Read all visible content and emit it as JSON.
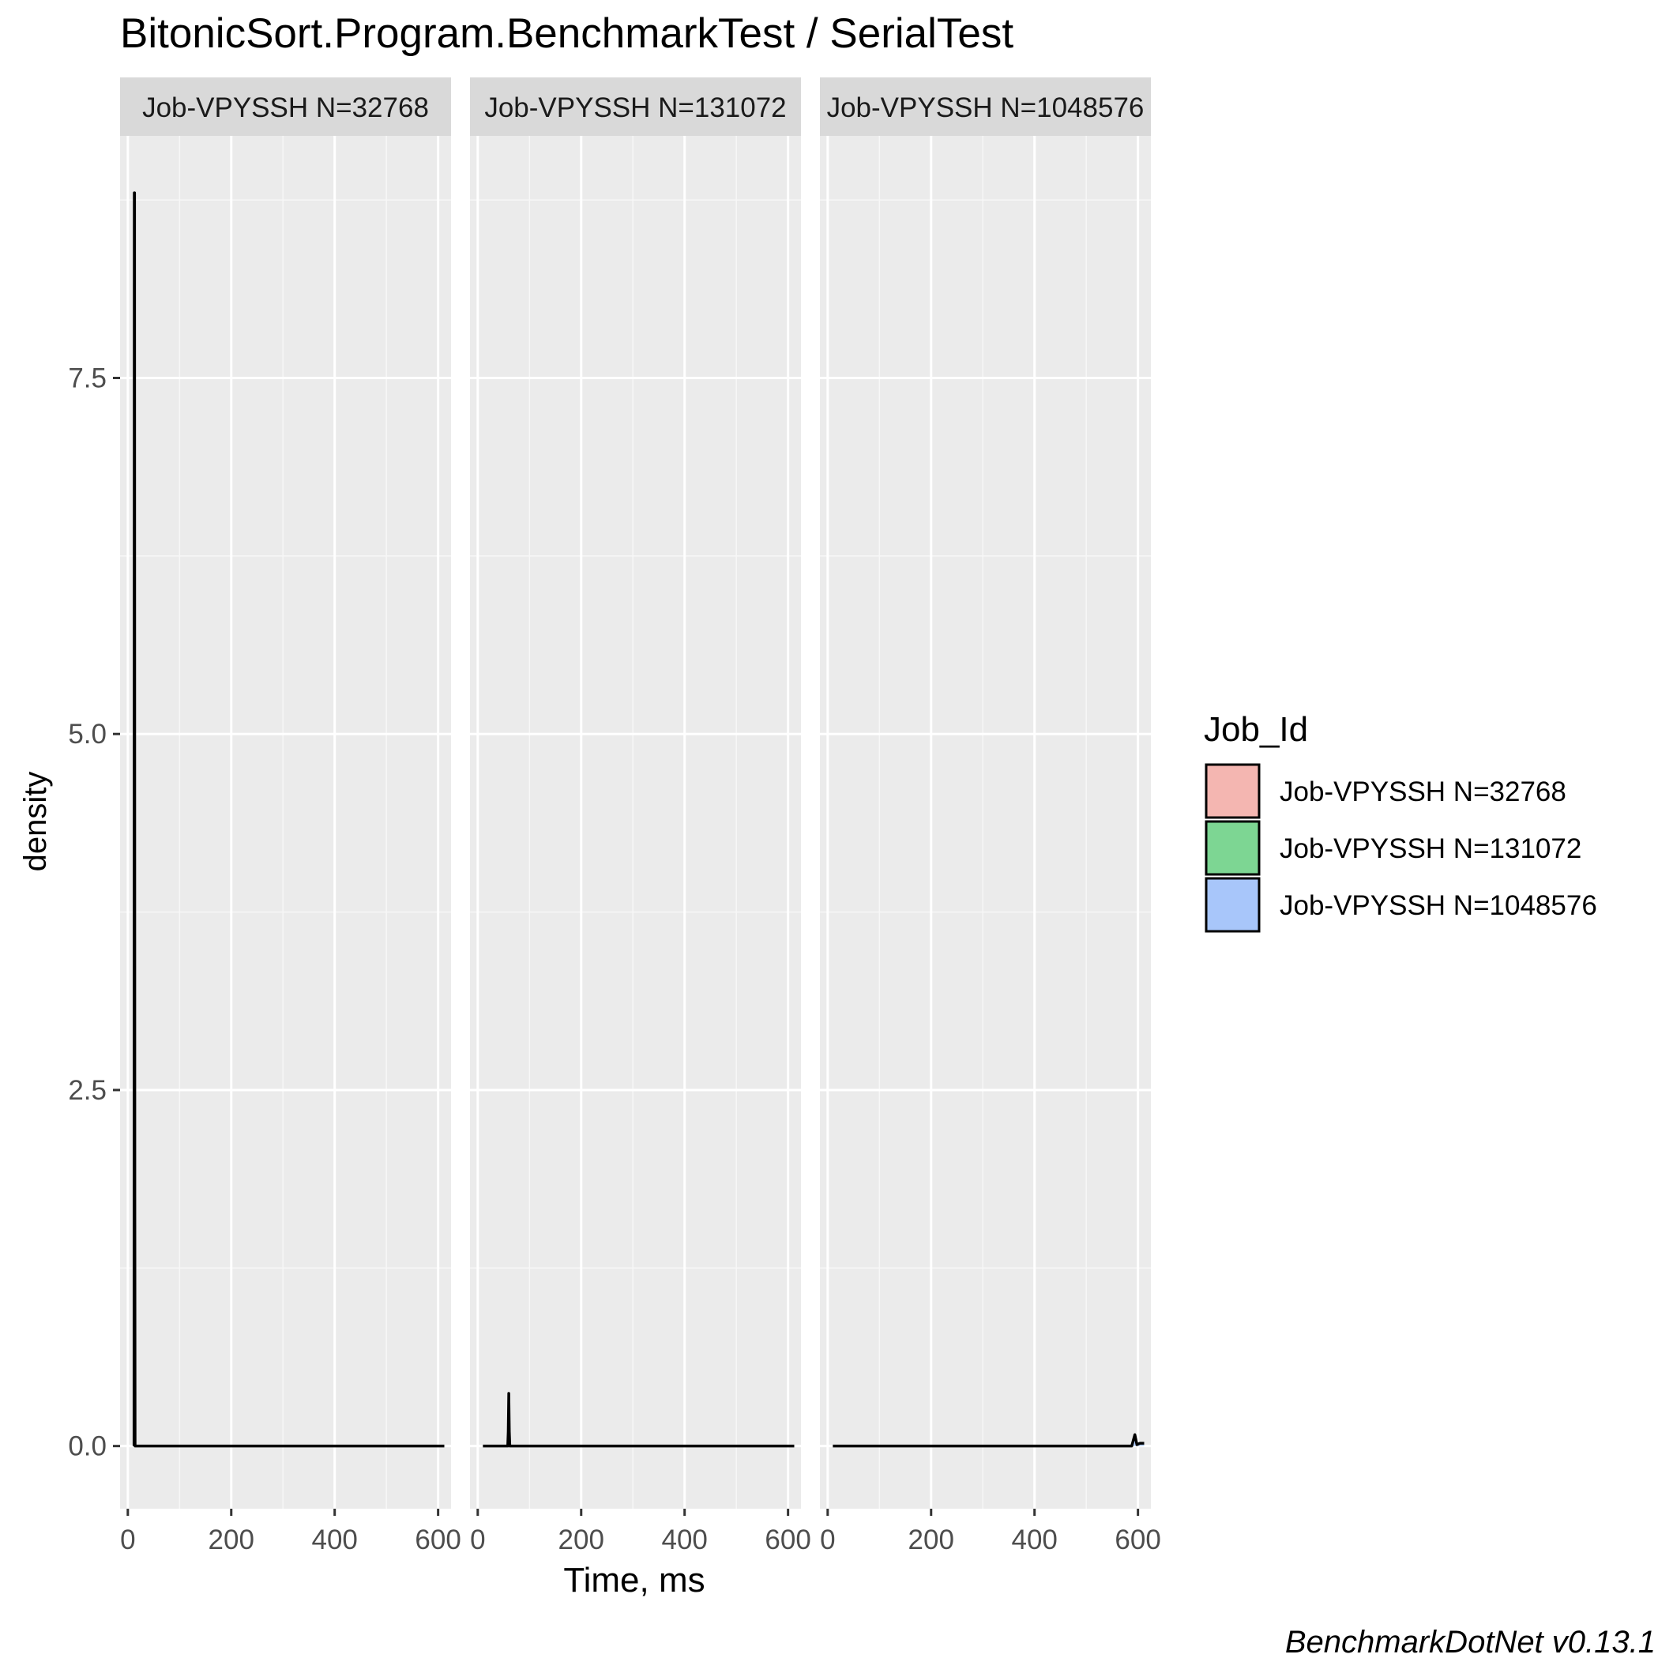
{
  "chart_data": {
    "type": "area",
    "title": "BitonicSort.Program.BenchmarkTest / SerialTest",
    "xlabel": "Time, ms",
    "ylabel": "density",
    "caption": "BenchmarkDotNet v0.13.1",
    "xlim": [
      -15,
      625
    ],
    "ylim": [
      -0.44,
      9.2
    ],
    "x_ticks": [
      0,
      200,
      400,
      600
    ],
    "y_ticks": [
      0.0,
      2.5,
      5.0,
      7.5
    ],
    "y_tick_labels": [
      "0.0",
      "2.5",
      "5.0",
      "7.5"
    ],
    "grid": true,
    "legend": {
      "title": "Job_Id",
      "position": "right",
      "entries": [
        {
          "label": "Job-VPYSSH N=32768",
          "color": "#F4B6B1"
        },
        {
          "label": "Job-VPYSSH N=131072",
          "color": "#7DD693"
        },
        {
          "label": "Job-VPYSSH N=1048576",
          "color": "#A8C6FA"
        }
      ]
    },
    "panels": [
      {
        "strip": "Job-VPYSSH N=32768",
        "fill": "#F4B6B1",
        "points": [
          [
            12,
            0
          ],
          [
            12.5,
            8.8
          ],
          [
            13,
            8.8
          ],
          [
            13.5,
            1.75
          ],
          [
            14,
            0
          ],
          [
            612,
            0
          ]
        ]
      },
      {
        "strip": "Job-VPYSSH N=131072",
        "fill": "#7DD693",
        "points": [
          [
            10,
            0
          ],
          [
            58,
            0
          ],
          [
            59,
            0.1
          ],
          [
            60,
            0.37
          ],
          [
            61,
            0.1
          ],
          [
            62,
            0
          ],
          [
            612,
            0
          ]
        ]
      },
      {
        "strip": "Job-VPYSSH N=1048576",
        "fill": "#A8C6FA",
        "points": [
          [
            10,
            0
          ],
          [
            588,
            0
          ],
          [
            594,
            0.08
          ],
          [
            598,
            0.01
          ],
          [
            604,
            0.02
          ],
          [
            612,
            0.02
          ]
        ]
      }
    ]
  }
}
